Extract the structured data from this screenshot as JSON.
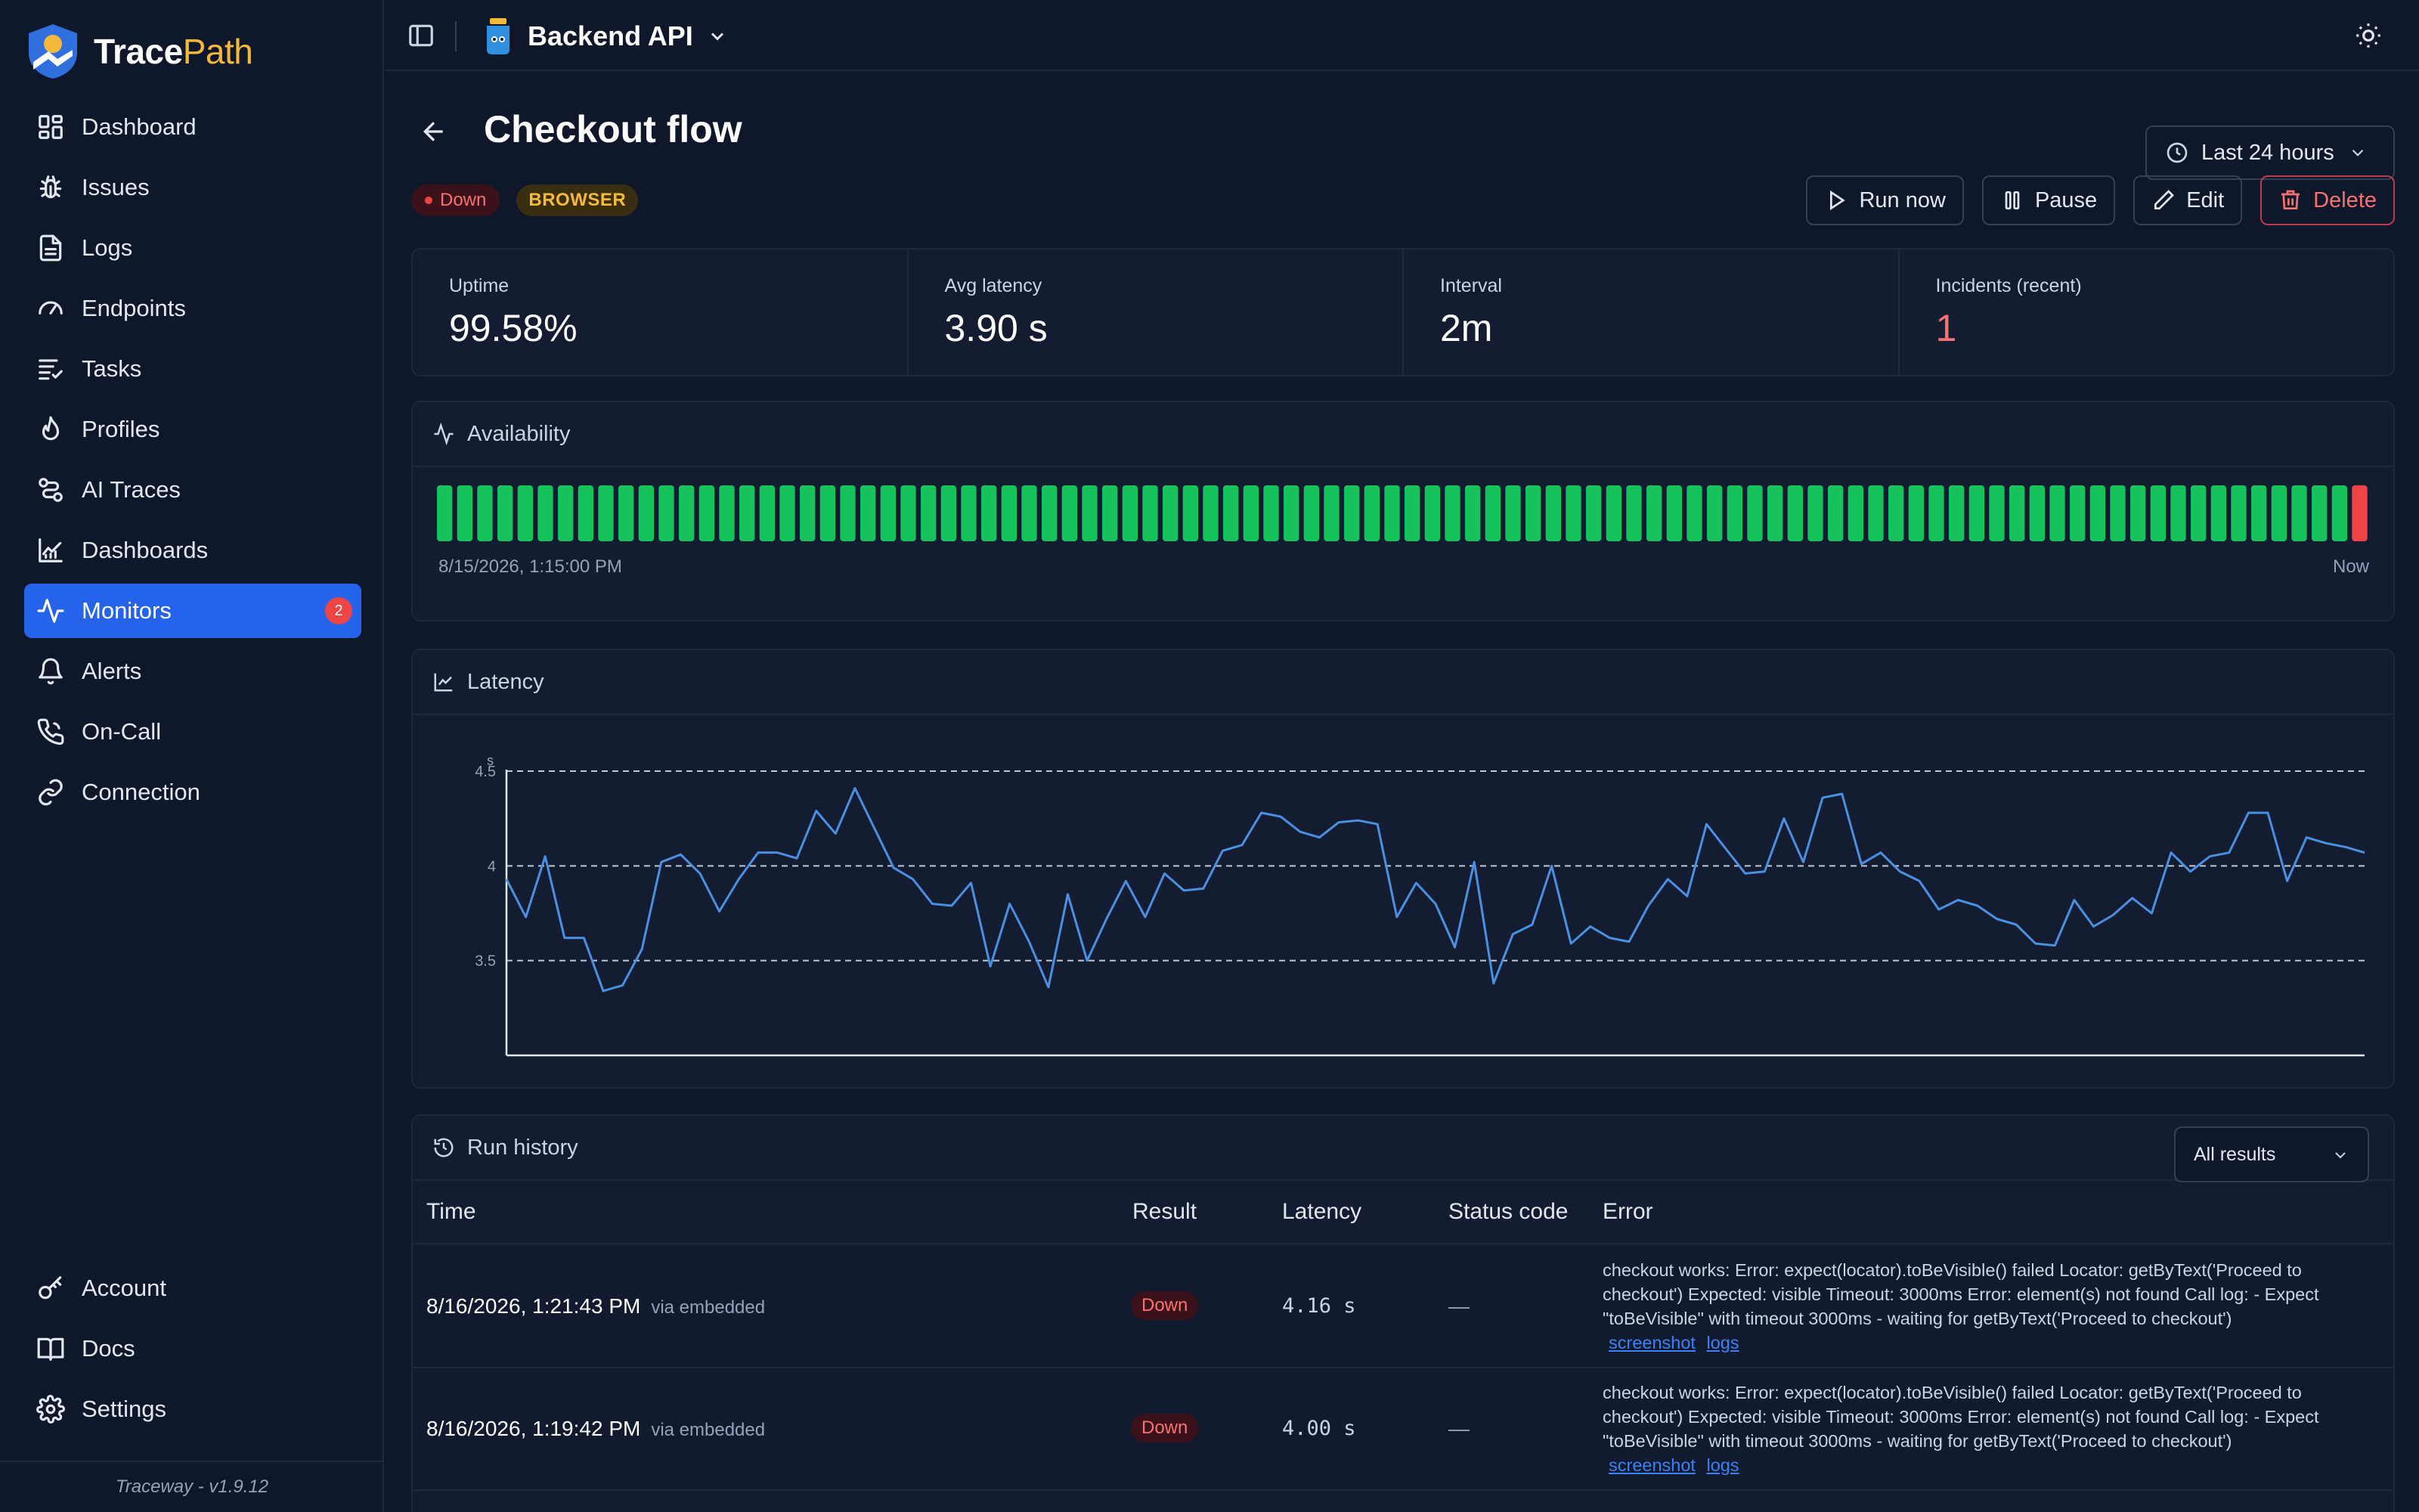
{
  "brand": {
    "name_main": "Trace",
    "name_accent": "Path"
  },
  "nav": [
    {
      "id": "dashboard",
      "label": "Dashboard",
      "icon": "grid-icon"
    },
    {
      "id": "issues",
      "label": "Issues",
      "icon": "bug-icon"
    },
    {
      "id": "logs",
      "label": "Logs",
      "icon": "file-text-icon"
    },
    {
      "id": "endpoints",
      "label": "Endpoints",
      "icon": "gauge-icon"
    },
    {
      "id": "tasks",
      "label": "Tasks",
      "icon": "list-icon"
    },
    {
      "id": "profiles",
      "label": "Profiles",
      "icon": "flame-icon"
    },
    {
      "id": "ai-traces",
      "label": "AI Traces",
      "icon": "route-icon"
    },
    {
      "id": "dashboards",
      "label": "Dashboards",
      "icon": "chart-icon"
    },
    {
      "id": "monitors",
      "label": "Monitors",
      "icon": "activity-icon",
      "active": true,
      "badge": "2"
    },
    {
      "id": "alerts",
      "label": "Alerts",
      "icon": "bell-icon"
    },
    {
      "id": "on-call",
      "label": "On-Call",
      "icon": "phone-icon"
    },
    {
      "id": "connection",
      "label": "Connection",
      "icon": "link-icon"
    }
  ],
  "nav_bottom": [
    {
      "id": "account",
      "label": "Account",
      "icon": "key-icon"
    },
    {
      "id": "docs",
      "label": "Docs",
      "icon": "book-icon"
    },
    {
      "id": "settings",
      "label": "Settings",
      "icon": "gear-icon"
    }
  ],
  "version": "Traceway - v1.9.12",
  "topbar": {
    "project": "Backend API"
  },
  "page": {
    "title": "Checkout flow",
    "range": "Last 24 hours",
    "status": "Down",
    "type": "BROWSER",
    "actions": {
      "run": "Run now",
      "pause": "Pause",
      "edit": "Edit",
      "delete": "Delete"
    }
  },
  "stats": [
    {
      "label": "Uptime",
      "value": "99.58%"
    },
    {
      "label": "Avg latency",
      "value": "3.90 s"
    },
    {
      "label": "Interval",
      "value": "2m"
    },
    {
      "label": "Incidents (recent)",
      "value": "1",
      "alert": true
    }
  ],
  "availability": {
    "title": "Availability",
    "start": "8/15/2026, 1:15:00 PM",
    "end": "Now",
    "colors": {
      "up": "#16c25a",
      "down": "#ef4444"
    },
    "buckets": [
      "up",
      "up",
      "up",
      "up",
      "up",
      "up",
      "up",
      "up",
      "up",
      "up",
      "up",
      "up",
      "up",
      "up",
      "up",
      "up",
      "up",
      "up",
      "up",
      "up",
      "up",
      "up",
      "up",
      "up",
      "up",
      "up",
      "up",
      "up",
      "up",
      "up",
      "up",
      "up",
      "up",
      "up",
      "up",
      "up",
      "up",
      "up",
      "up",
      "up",
      "up",
      "up",
      "up",
      "up",
      "up",
      "up",
      "up",
      "up",
      "up",
      "up",
      "up",
      "up",
      "up",
      "up",
      "up",
      "up",
      "up",
      "up",
      "up",
      "up",
      "up",
      "up",
      "up",
      "up",
      "up",
      "up",
      "up",
      "up",
      "up",
      "up",
      "up",
      "up",
      "up",
      "up",
      "up",
      "up",
      "up",
      "up",
      "up",
      "up",
      "up",
      "up",
      "up",
      "up",
      "up",
      "up",
      "up",
      "up",
      "up",
      "up",
      "up",
      "up",
      "up",
      "up",
      "up",
      "down"
    ]
  },
  "chart_data": {
    "type": "line",
    "title": "Latency",
    "ylabel": "s",
    "ylim": [
      3.0,
      4.5
    ],
    "yticks": [
      "4.5",
      "4",
      "3.5"
    ],
    "grid": true,
    "color": "#4a90e2",
    "series": [
      {
        "values": [
          3.93,
          3.73,
          4.05,
          3.62,
          3.62,
          3.34,
          3.37,
          3.56,
          4.02,
          4.06,
          3.96,
          3.76,
          3.93,
          4.07,
          4.07,
          4.04,
          4.29,
          4.17,
          4.41,
          4.2,
          3.99,
          3.93,
          3.8,
          3.79,
          3.91,
          3.47,
          3.8,
          3.6,
          3.36,
          3.85,
          3.5,
          3.72,
          3.92,
          3.73,
          3.96,
          3.87,
          3.88,
          4.08,
          4.11,
          4.28,
          4.26,
          4.18,
          4.15,
          4.23,
          4.24,
          4.22,
          3.73,
          3.91,
          3.8,
          3.57,
          4.02,
          3.38,
          3.64,
          3.69,
          4.0,
          3.59,
          3.68,
          3.62,
          3.6,
          3.79,
          3.93,
          3.84,
          4.22,
          4.09,
          3.96,
          3.97,
          4.25,
          4.02,
          4.36,
          4.38,
          4.01,
          4.07,
          3.97,
          3.92,
          3.77,
          3.82,
          3.79,
          3.72,
          3.69,
          3.59,
          3.58,
          3.82,
          3.68,
          3.74,
          3.83,
          3.75,
          4.07,
          3.97,
          4.05,
          4.07,
          4.28,
          4.28,
          3.92,
          4.15,
          4.12,
          4.1,
          4.07
        ]
      }
    ]
  },
  "history": {
    "title": "Run history",
    "filter": "All results",
    "columns": [
      "Time",
      "Result",
      "Latency",
      "Status code",
      "Error"
    ],
    "rows": [
      {
        "time": "8/16/2026, 1:21:43 PM",
        "via": "via embedded",
        "result": "Down",
        "latency": "4.16 s",
        "status_code": "—",
        "error": "checkout works: Error: expect(locator).toBeVisible() failed Locator: getByText('Proceed to checkout') Expected: visible Timeout: 3000ms Error: element(s) not found Call log: - Expect \"toBeVisible\" with timeout 3000ms - waiting for getByText('Proceed to checkout')",
        "link1": "screenshot",
        "link2": "logs"
      },
      {
        "time": "8/16/2026, 1:19:42 PM",
        "via": "via embedded",
        "result": "Down",
        "latency": "4.00 s",
        "status_code": "—",
        "error": "checkout works: Error: expect(locator).toBeVisible() failed Locator: getByText('Proceed to checkout') Expected: visible Timeout: 3000ms Error: element(s) not found Call log: - Expect \"toBeVisible\" with timeout 3000ms - waiting for getByText('Proceed to checkout')",
        "link1": "screenshot",
        "link2": "logs"
      }
    ]
  }
}
